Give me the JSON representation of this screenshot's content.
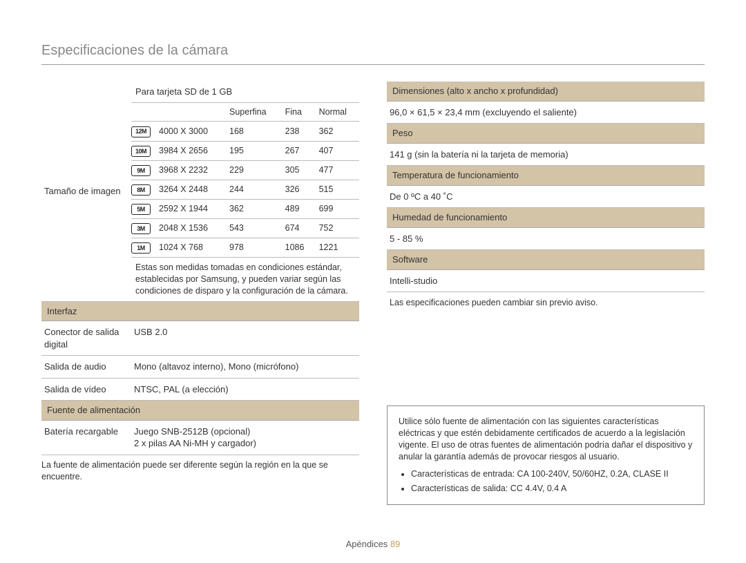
{
  "page_title": "Especificaciones de la cámara",
  "left": {
    "sd_header": "Para tarjeta SD de 1 GB",
    "image_size_label": "Tamaño de imagen",
    "size_table": {
      "headers": [
        "",
        "",
        "Superfina",
        "Fina",
        "Normal"
      ],
      "rows": [
        {
          "icon": "12M",
          "res": "4000 X 3000",
          "superfina": "168",
          "fina": "238",
          "normal": "362"
        },
        {
          "icon": "10M",
          "res": "3984 X 2656",
          "superfina": "195",
          "fina": "267",
          "normal": "407"
        },
        {
          "icon": "9M",
          "res": "3968 X 2232",
          "superfina": "229",
          "fina": "305",
          "normal": "477"
        },
        {
          "icon": "8M",
          "res": "3264 X 2448",
          "superfina": "244",
          "fina": "326",
          "normal": "515"
        },
        {
          "icon": "5M",
          "res": "2592 X 1944",
          "superfina": "362",
          "fina": "489",
          "normal": "699"
        },
        {
          "icon": "3M",
          "res": "2048 X 1536",
          "superfina": "543",
          "fina": "674",
          "normal": "752"
        },
        {
          "icon": "1M",
          "res": "1024 X 768",
          "superfina": "978",
          "fina": "1086",
          "normal": "1221"
        }
      ],
      "note": "Estas son medidas tomadas en condiciones estándar, establecidas por Samsung, y pueden variar según las condiciones de disparo y la configuración de la cámara."
    },
    "interfaz_header": "Interfaz",
    "interfaz_rows": [
      {
        "k": "Conector de salida digital",
        "v": "USB 2.0"
      },
      {
        "k": "Salida de audio",
        "v": "Mono (altavoz interno), Mono (micrófono)"
      },
      {
        "k": "Salida de vídeo",
        "v": "NTSC, PAL (a elección)"
      }
    ],
    "fuente_header": "Fuente de alimentación",
    "fuente_rows": [
      {
        "k": "Batería recargable",
        "v": "Juego SNB-2512B (opcional)\n2 x pilas AA Ni-MH y cargador)"
      }
    ],
    "fuente_note": "La fuente de alimentación puede ser diferente según la región en la que se encuentre."
  },
  "right": {
    "sections": [
      {
        "header": "Dimensiones (alto x ancho x profundidad)",
        "value": "96,0 × 61,5 × 23,4 mm (excluyendo el saliente)"
      },
      {
        "header": "Peso",
        "value": "141 g (sin la batería ni la tarjeta de memoria)"
      },
      {
        "header": "Temperatura de funcionamiento",
        "value": "De 0 ºC a 40 ˚C"
      },
      {
        "header": "Humedad de funcionamiento",
        "value": "5 - 85 %"
      },
      {
        "header": "Software",
        "value": "Intelli-studio"
      }
    ],
    "disclaimer": "Las especificaciones pueden cambiar sin previo aviso.",
    "warning_text": "Utilice sólo fuente de alimentación con las siguientes características eléctricas y que estén debidamente certificados de acuerdo a la legislación vigente. El uso de otras fuentes de alimentación podría dañar el dispositivo y anular la garantía además de provocar riesgos al usuario.",
    "warning_items": [
      "Características de entrada: CA 100-240V, 50/60HZ, 0.2A, CLASE II",
      "Características de salida: CC 4.4V, 0.4 A"
    ]
  },
  "footer": {
    "section": "Apéndices",
    "page": "89"
  },
  "colors": {
    "section_bg": "#d3c3a7",
    "title_color": "#888888",
    "border": "#bbbbbb",
    "page_num": "#c8a05a"
  }
}
